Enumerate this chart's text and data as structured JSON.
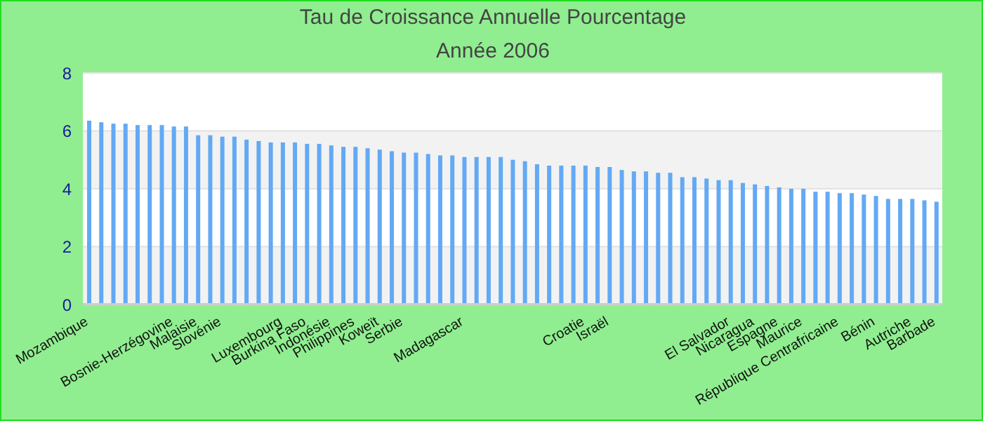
{
  "chart_data": {
    "type": "bar",
    "title": "Tau de Croissance Annuelle  Pourcentage",
    "subtitle": "Année 2006",
    "categories": [
      "Mozambique",
      null,
      null,
      null,
      null,
      null,
      null,
      "Bosnie-Herzégovine",
      null,
      "Malaisie",
      null,
      "Slovénie",
      null,
      null,
      null,
      null,
      "Luxembourg",
      null,
      "Burkina Faso",
      null,
      "Indonésie",
      null,
      "Philippines",
      null,
      "Koweït",
      null,
      "Serbie",
      null,
      null,
      null,
      null,
      "Madagascar",
      null,
      null,
      null,
      null,
      null,
      null,
      null,
      null,
      null,
      "Croatie",
      null,
      "Israël",
      null,
      null,
      null,
      null,
      null,
      null,
      null,
      null,
      null,
      "El Salvador",
      null,
      "Nicaragua",
      null,
      "Espagne",
      null,
      "Maurice",
      null,
      null,
      "République Centrafricaine",
      null,
      null,
      "Bénin",
      null,
      null,
      "Autriche",
      null,
      "Barbade"
    ],
    "values": [
      6.35,
      6.3,
      6.25,
      6.25,
      6.2,
      6.2,
      6.2,
      6.15,
      6.15,
      5.85,
      5.85,
      5.8,
      5.8,
      5.7,
      5.65,
      5.6,
      5.6,
      5.6,
      5.55,
      5.55,
      5.5,
      5.45,
      5.45,
      5.4,
      5.35,
      5.3,
      5.25,
      5.25,
      5.2,
      5.15,
      5.15,
      5.1,
      5.1,
      5.1,
      5.1,
      5.0,
      4.95,
      4.85,
      4.8,
      4.8,
      4.8,
      4.8,
      4.75,
      4.75,
      4.65,
      4.6,
      4.6,
      4.55,
      4.55,
      4.4,
      4.4,
      4.35,
      4.3,
      4.3,
      4.2,
      4.15,
      4.1,
      4.05,
      4.0,
      4.0,
      3.9,
      3.9,
      3.85,
      3.85,
      3.8,
      3.75,
      3.65,
      3.65,
      3.65,
      3.6,
      3.55
    ],
    "color": "#63a9f4",
    "ylim": [
      0,
      8
    ],
    "yticks": [
      0,
      2,
      4,
      6,
      8
    ],
    "grid": "y"
  }
}
